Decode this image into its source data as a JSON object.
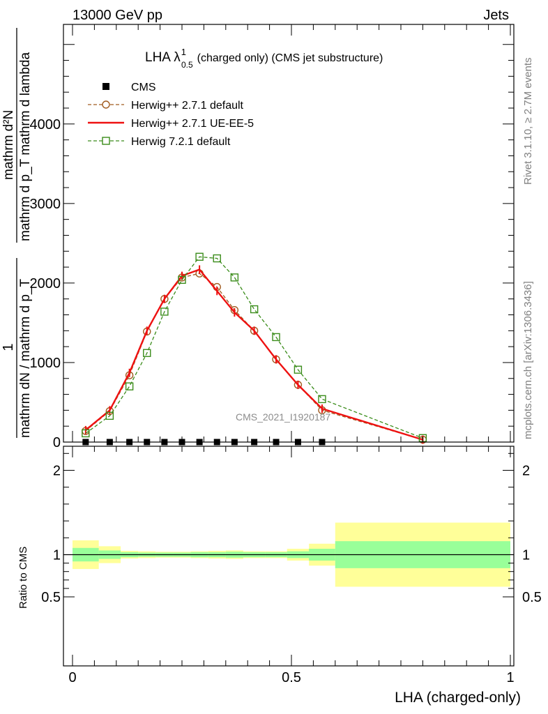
{
  "header": {
    "left": "13000 GeV pp",
    "right": "Jets"
  },
  "side_labels": {
    "rivet": "Rivet 3.1.10, ≥ 2.7M events",
    "mcplots": "mcplots.cern.ch [arXiv:1306.3436]"
  },
  "watermark": "CMS_2021_I1920187",
  "chart_data": [
    {
      "type": "line",
      "title": "LHA λ",
      "title_superscript": "1",
      "title_subscript": "0.5",
      "title_suffix": "(charged only) (CMS jet substructure)",
      "ylabel_top": "mathrm d²N",
      "ylabel_bottom": "mathrm d p_T mathrm d lambda",
      "ylabel_prefix_num": "1",
      "ylabel_prefix_den": "mathrm dN / mathrm d p_T",
      "xlim": [
        0,
        1
      ],
      "ylim": [
        0,
        5000
      ],
      "yticks": [
        0,
        1000,
        2000,
        3000,
        4000
      ],
      "ytick_labels": [
        "0",
        "1000",
        "2000",
        "3000",
        "4000"
      ],
      "x": [
        0.03,
        0.085,
        0.13,
        0.17,
        0.21,
        0.25,
        0.29,
        0.33,
        0.37,
        0.415,
        0.465,
        0.515,
        0.57,
        0.8
      ],
      "series": [
        {
          "name": "CMS",
          "color": "#000000",
          "marker": "filled-square",
          "values": [
            0,
            0,
            0,
            0,
            0,
            0,
            0,
            0,
            0,
            0,
            0,
            0,
            0,
            null
          ]
        },
        {
          "name": "Herwig++ 2.7.1 default",
          "color": "#a05a1e",
          "marker": "open-circle",
          "dash": true,
          "values": [
            140,
            390,
            840,
            1390,
            1800,
            2070,
            2120,
            1950,
            1660,
            1400,
            1040,
            720,
            400,
            30
          ]
        },
        {
          "name": "Herwig++ 2.7.1 UE-EE-5",
          "color": "#ee1111",
          "marker": "none",
          "dash": false,
          "values": [
            150,
            400,
            870,
            1400,
            1800,
            2090,
            2170,
            1900,
            1630,
            1400,
            1040,
            720,
            420,
            30
          ]
        },
        {
          "name": "Herwig 7.2.1 default",
          "color": "#3a8c1a",
          "marker": "open-square",
          "dash": true,
          "values": [
            110,
            330,
            700,
            1120,
            1640,
            2040,
            2330,
            2310,
            2070,
            1670,
            1320,
            910,
            540,
            50
          ]
        }
      ]
    },
    {
      "type": "area",
      "ylabel": "Ratio to CMS",
      "xlabel": "LHA (charged-only)",
      "xlim": [
        0,
        1
      ],
      "ylim": [
        0.4,
        2.3
      ],
      "yticks": [
        0.5,
        1,
        2
      ],
      "ytick_labels": [
        "0.5",
        "1",
        "2"
      ],
      "xticks": [
        0,
        0.5,
        1
      ],
      "xtick_labels": [
        "0",
        "0.5",
        "1"
      ],
      "bin_edges": [
        0,
        0.06,
        0.11,
        0.15,
        0.19,
        0.23,
        0.27,
        0.31,
        0.35,
        0.39,
        0.44,
        0.49,
        0.54,
        0.6,
        1.0
      ],
      "green_band": [
        [
          0.92,
          1.08
        ],
        [
          0.95,
          1.05
        ],
        [
          0.97,
          1.03
        ],
        [
          0.975,
          1.025
        ],
        [
          0.975,
          1.025
        ],
        [
          0.975,
          1.025
        ],
        [
          0.97,
          1.03
        ],
        [
          0.97,
          1.03
        ],
        [
          0.965,
          1.035
        ],
        [
          0.97,
          1.03
        ],
        [
          0.97,
          1.03
        ],
        [
          0.96,
          1.04
        ],
        [
          0.93,
          1.07
        ],
        [
          0.84,
          1.16
        ]
      ],
      "yellow_band": [
        [
          0.83,
          1.17
        ],
        [
          0.9,
          1.1
        ],
        [
          0.955,
          1.045
        ],
        [
          0.96,
          1.04
        ],
        [
          0.965,
          1.035
        ],
        [
          0.965,
          1.035
        ],
        [
          0.96,
          1.04
        ],
        [
          0.955,
          1.045
        ],
        [
          0.95,
          1.05
        ],
        [
          0.96,
          1.04
        ],
        [
          0.96,
          1.04
        ],
        [
          0.93,
          1.07
        ],
        [
          0.87,
          1.13
        ],
        [
          0.62,
          1.38
        ]
      ],
      "green_color": "#99ff99",
      "yellow_color": "#ffff99"
    }
  ]
}
